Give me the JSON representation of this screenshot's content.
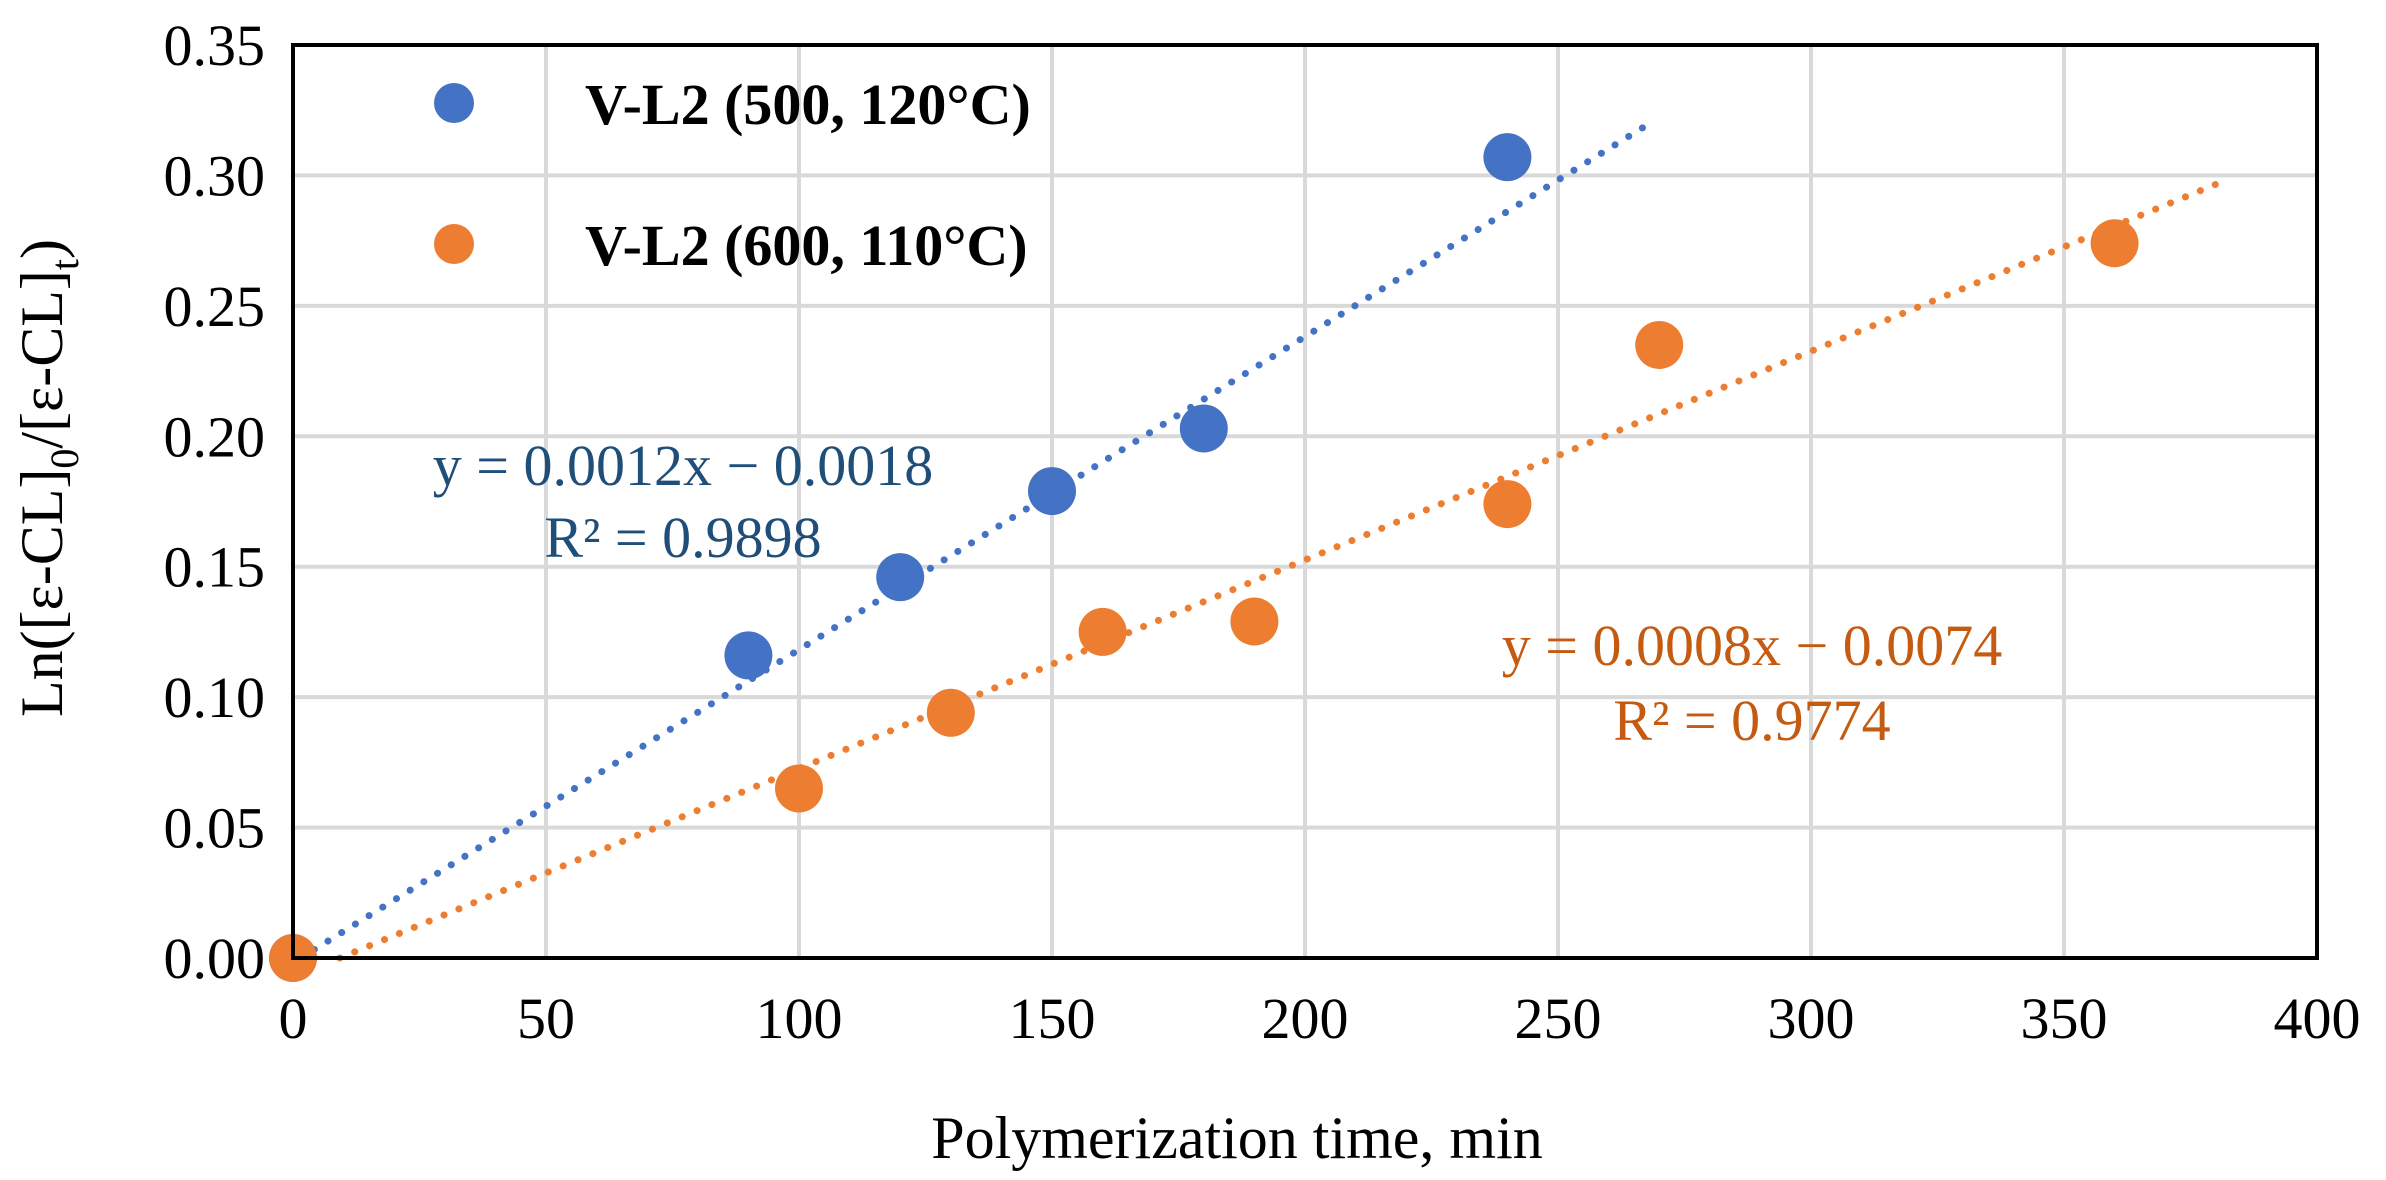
{
  "chart_data": {
    "type": "scatter",
    "title": "",
    "xlabel": "Polymerization time, min",
    "ylabel": "Ln([ε-CL]0/[ε-CL]t)",
    "ylabel_parts": {
      "base": "Ln(ε-CL]",
      "prefix": "Ln(",
      "first": "ε-CL]",
      "open": "[",
      "sub0": "0",
      "mid": "/[ε-CL]",
      "subt": "t"
    },
    "xlim": [
      0,
      400
    ],
    "ylim": [
      0,
      0.35
    ],
    "xticks": [
      0,
      50,
      100,
      150,
      200,
      250,
      300,
      350,
      400
    ],
    "yticks": [
      0.0,
      0.05,
      0.1,
      0.15,
      0.2,
      0.25,
      0.3,
      0.35
    ],
    "xtick_labels": [
      "0",
      "50",
      "100",
      "150",
      "200",
      "250",
      "300",
      "350",
      "400"
    ],
    "ytick_labels": [
      "0.00",
      "0.05",
      "0.10",
      "0.15",
      "0.20",
      "0.25",
      "0.30",
      "0.35"
    ],
    "grid": true,
    "legend_position": "top-left",
    "series": [
      {
        "name": "V-L2 (500, 120°C)",
        "color": "#4472C4",
        "x": [
          0,
          90,
          120,
          150,
          180,
          240
        ],
        "y": [
          0.0,
          0.116,
          0.146,
          0.179,
          0.203,
          0.307
        ],
        "trendline": {
          "slope": 0.0012,
          "intercept": -0.0018,
          "x_range": [
            0,
            268
          ],
          "equation": "y = 0.0012x − 0.0018",
          "r2": "R² = 0.9898",
          "label_color": "#1F4E79"
        }
      },
      {
        "name": "V-L2 (600, 110°C)",
        "color": "#ED7D31",
        "x": [
          0,
          100,
          130,
          160,
          190,
          240,
          270,
          360
        ],
        "y": [
          0.0,
          0.065,
          0.094,
          0.125,
          0.129,
          0.174,
          0.235,
          0.274
        ],
        "trendline": {
          "slope": 0.0008,
          "intercept": -0.0074,
          "x_range": [
            0,
            380
          ],
          "equation": "y = 0.0008x − 0.0074",
          "r2": "R² = 0.9774",
          "label_color": "#C55A11"
        }
      }
    ]
  }
}
